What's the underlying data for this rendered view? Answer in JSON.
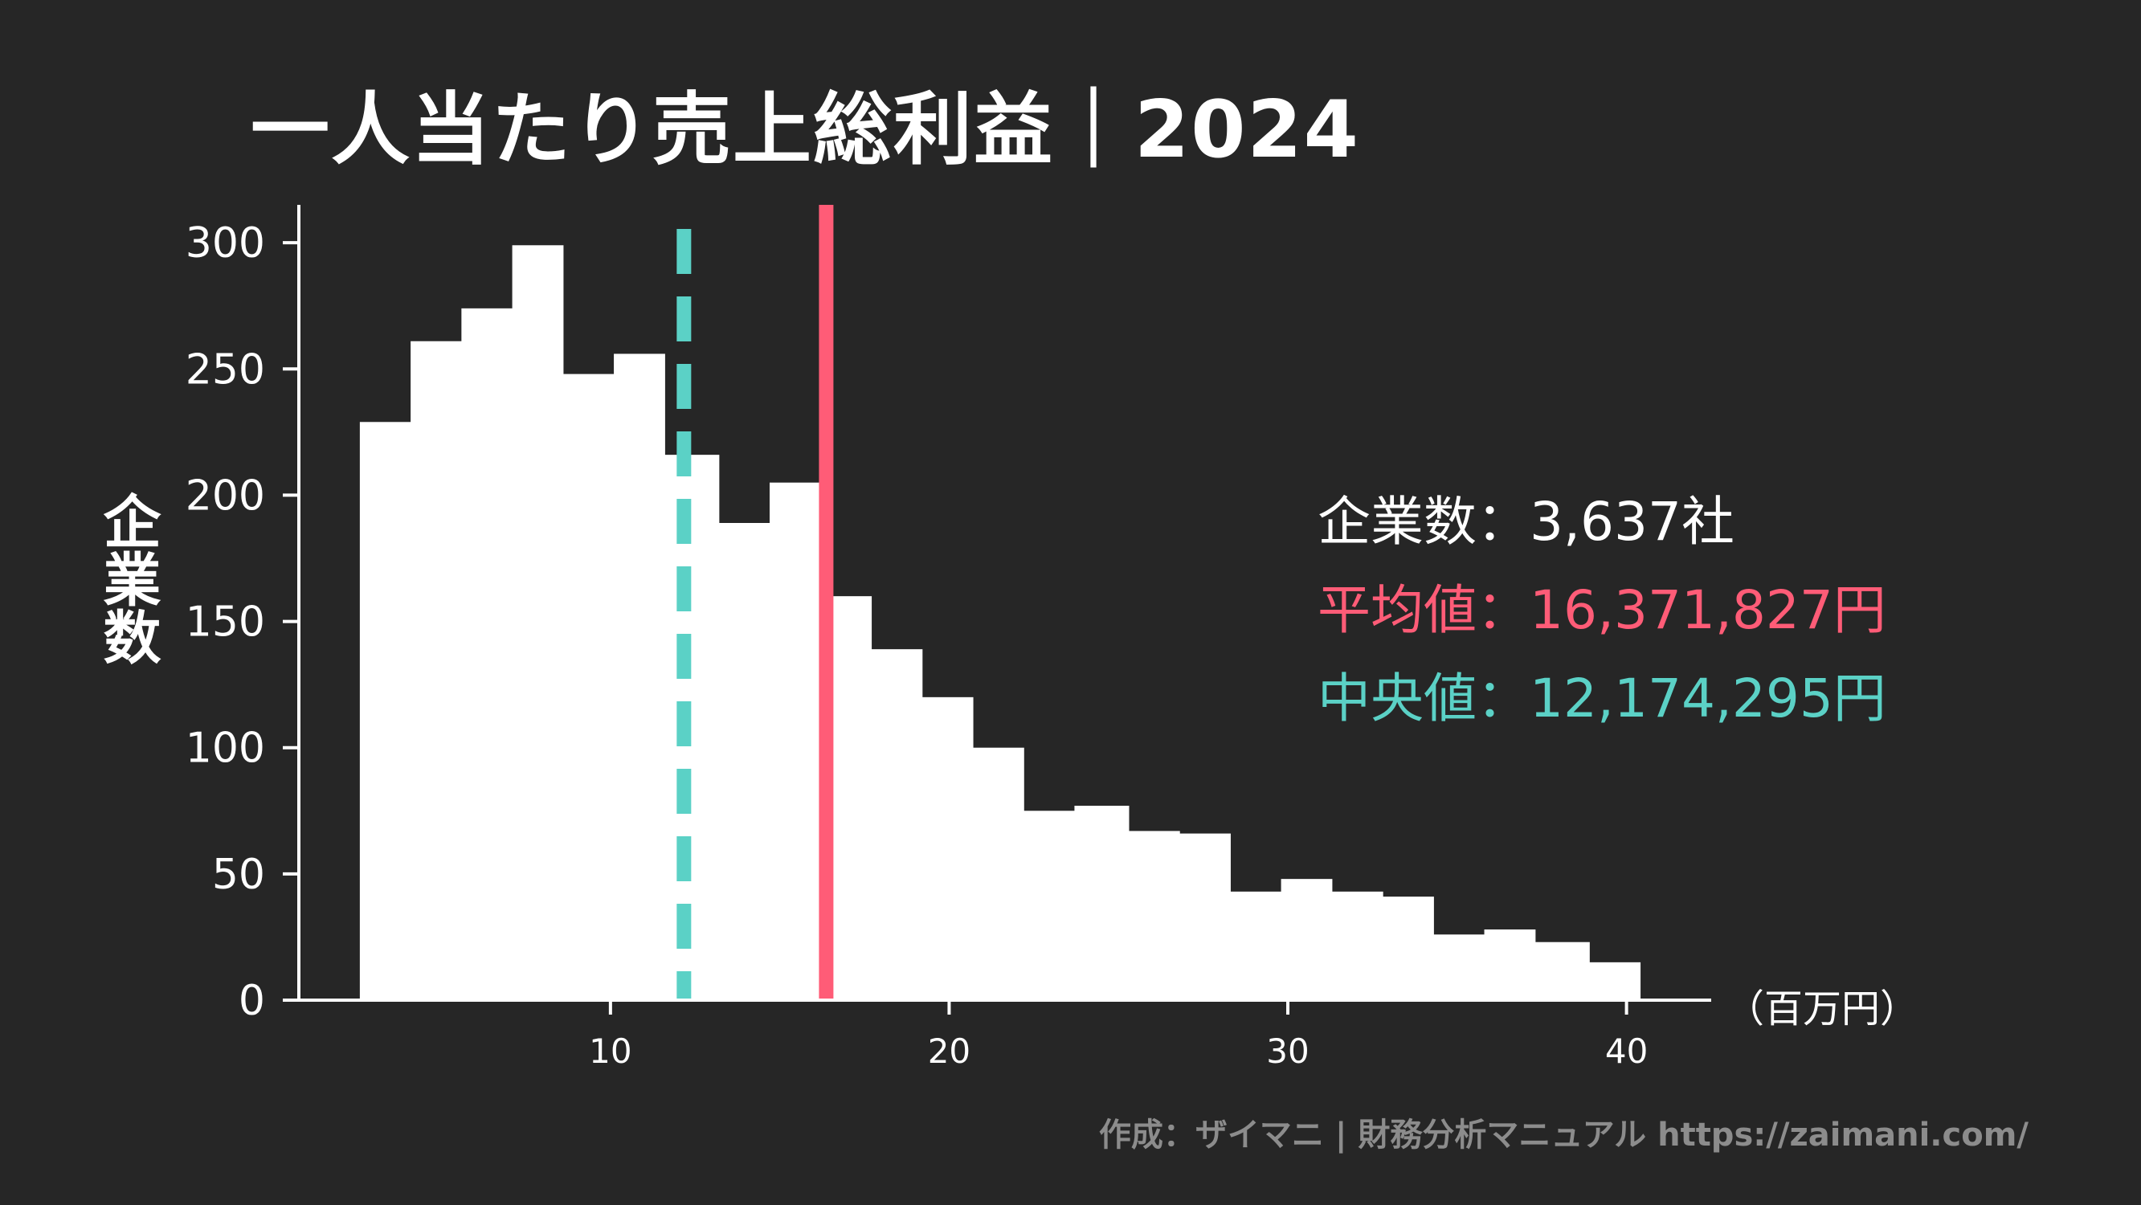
{
  "title": "一人当たり売上総利益｜2024",
  "chart_data": {
    "type": "bar",
    "title": "一人当たり売上総利益｜2024",
    "xlabel": "（百万円）",
    "ylabel": "企業数",
    "xlim": [
      0.8,
      42.5
    ],
    "ylim": [
      0,
      315
    ],
    "x_ticks": [
      10,
      20,
      30,
      40
    ],
    "y_ticks": [
      0,
      50,
      100,
      150,
      200,
      250,
      300
    ],
    "bin_edges": [
      2.6,
      4.1,
      5.6,
      7.1,
      8.6,
      10.1,
      11.6,
      13.2,
      14.7,
      16.2,
      17.7,
      19.2,
      20.7,
      22.2,
      23.7,
      25.3,
      26.8,
      28.3,
      29.8,
      31.3,
      32.8,
      34.3,
      35.8,
      37.3,
      38.9,
      40.4
    ],
    "counts": [
      229,
      261,
      274,
      299,
      248,
      256,
      216,
      189,
      205,
      160,
      139,
      120,
      100,
      75,
      77,
      67,
      66,
      43,
      48,
      43,
      41,
      26,
      28,
      23,
      15
    ],
    "reference_lines": [
      {
        "label": "平均値",
        "x": 16.37,
        "style": "solid",
        "color": "#ff5c77"
      },
      {
        "label": "中央値",
        "x": 12.17,
        "style": "dashed",
        "color": "#5bd1c6"
      }
    ],
    "bar_color": "#ffffff",
    "grid": false
  },
  "stats": {
    "count": "企業数：3,637社",
    "mean": "平均値：16,371,827円",
    "median": "中央値：12,174,295円"
  },
  "axis": {
    "ylabel": "企業数",
    "xunit": "（百万円）"
  },
  "credit": "作成：ザイマニ | 財務分析マニュアル https://zaimani.com/",
  "colors": {
    "background": "#262626",
    "bars": "#ffffff",
    "mean": "#ff5c77",
    "median": "#5bd1c6",
    "credit": "#8c8c8c"
  }
}
